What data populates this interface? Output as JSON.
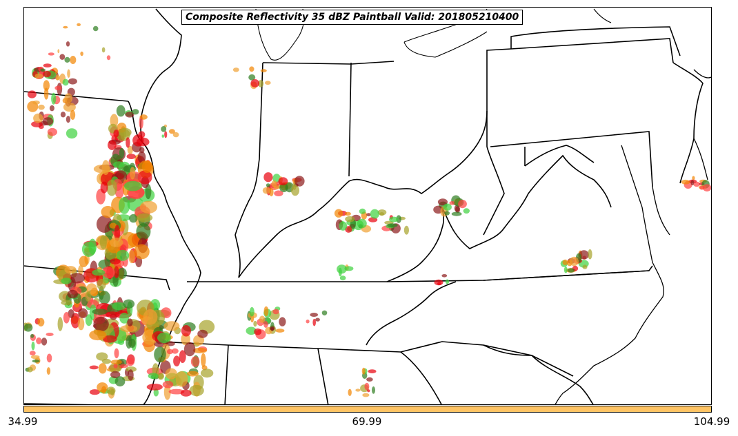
{
  "title": "Composite Reflectivity 35 dBZ Paintball Valid: 201805210400",
  "colorbar": {
    "color": "#FFC464",
    "tick_labels": [
      "34.99",
      "69.99",
      "104.99"
    ]
  },
  "colors": {
    "member_colors": [
      "#E8000B",
      "#F28400",
      "#2E7D1F",
      "#8B1A1A",
      "#A6A32A",
      "#3DD13D",
      "#F0A030",
      "#FF4040"
    ]
  }
}
